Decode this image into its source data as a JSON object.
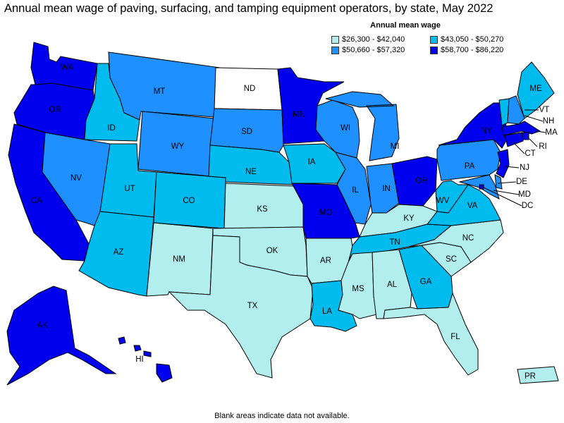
{
  "title": "Annual mean wage of paving, surfacing, and tamping equipment operators, by state, May 2022",
  "legend": {
    "title": "Annual mean wage",
    "items": [
      {
        "label": "$26,300 - $42,040",
        "color": "#b2eeee"
      },
      {
        "label": "$43,050 - $50,270",
        "color": "#00bbee"
      },
      {
        "label": "$50,660 - $57,320",
        "color": "#1e90ff"
      },
      {
        "label": "$58,700 - $86,220",
        "color": "#0000ee"
      }
    ]
  },
  "no_data_color": "#ffffff",
  "footnote": "Blank areas indicate data not available.",
  "states": [
    {
      "code": "WA",
      "cls": 3
    },
    {
      "code": "OR",
      "cls": 3
    },
    {
      "code": "CA",
      "cls": 3
    },
    {
      "code": "ID",
      "cls": 1
    },
    {
      "code": "NV",
      "cls": 2
    },
    {
      "code": "MT",
      "cls": 2
    },
    {
      "code": "WY",
      "cls": 2
    },
    {
      "code": "UT",
      "cls": 1
    },
    {
      "code": "AZ",
      "cls": 1
    },
    {
      "code": "CO",
      "cls": 1
    },
    {
      "code": "NM",
      "cls": 0
    },
    {
      "code": "ND",
      "cls": -1
    },
    {
      "code": "SD",
      "cls": 2
    },
    {
      "code": "NE",
      "cls": 1
    },
    {
      "code": "KS",
      "cls": 0
    },
    {
      "code": "OK",
      "cls": 0
    },
    {
      "code": "TX",
      "cls": 0
    },
    {
      "code": "MN",
      "cls": 3
    },
    {
      "code": "IA",
      "cls": 1
    },
    {
      "code": "MO",
      "cls": 3
    },
    {
      "code": "AR",
      "cls": 0
    },
    {
      "code": "LA",
      "cls": 1
    },
    {
      "code": "WI",
      "cls": 2
    },
    {
      "code": "IL",
      "cls": 2
    },
    {
      "code": "MI",
      "cls": 2
    },
    {
      "code": "IN",
      "cls": 2
    },
    {
      "code": "OH",
      "cls": 3
    },
    {
      "code": "KY",
      "cls": 0
    },
    {
      "code": "TN",
      "cls": 1
    },
    {
      "code": "MS",
      "cls": 0
    },
    {
      "code": "AL",
      "cls": 0
    },
    {
      "code": "GA",
      "cls": 1
    },
    {
      "code": "FL",
      "cls": 0
    },
    {
      "code": "SC",
      "cls": 0
    },
    {
      "code": "NC",
      "cls": 0
    },
    {
      "code": "VA",
      "cls": 1
    },
    {
      "code": "WV",
      "cls": 1
    },
    {
      "code": "PA",
      "cls": 2
    },
    {
      "code": "NY",
      "cls": 3
    },
    {
      "code": "VT",
      "cls": 1
    },
    {
      "code": "NH",
      "cls": 2
    },
    {
      "code": "ME",
      "cls": 1
    },
    {
      "code": "MA",
      "cls": 3
    },
    {
      "code": "RI",
      "cls": 3
    },
    {
      "code": "CT",
      "cls": 3
    },
    {
      "code": "NJ",
      "cls": 3
    },
    {
      "code": "DE",
      "cls": 2
    },
    {
      "code": "MD",
      "cls": 2
    },
    {
      "code": "DC",
      "cls": 3
    },
    {
      "code": "AK",
      "cls": 3
    },
    {
      "code": "HI",
      "cls": 3
    },
    {
      "code": "PR",
      "cls": 0
    }
  ]
}
